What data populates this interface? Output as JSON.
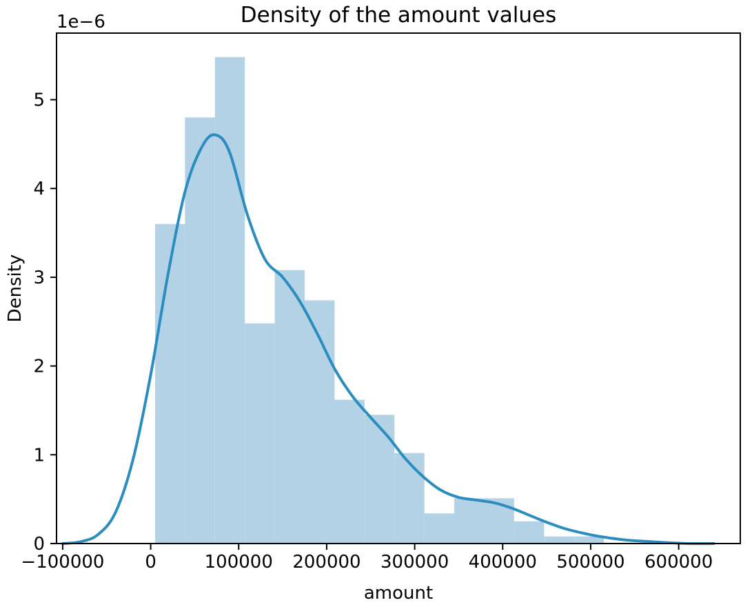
{
  "chart_data": {
    "type": "histogram",
    "title": "Density of the amount values",
    "xlabel": "amount",
    "ylabel": "Density",
    "y_offset_label": "1e−6",
    "xlim": [
      -107000,
      670000
    ],
    "ylim": [
      0,
      5.75
    ],
    "x_ticks": [
      -100000,
      0,
      100000,
      200000,
      300000,
      400000,
      500000,
      600000
    ],
    "x_tick_labels": [
      "−100000",
      "0",
      "100000",
      "200000",
      "300000",
      "400000",
      "500000",
      "600000"
    ],
    "y_ticks": [
      0,
      1,
      2,
      3,
      4,
      5
    ],
    "y_tick_labels": [
      "0",
      "1",
      "2",
      "3",
      "4",
      "5"
    ],
    "bins": [
      {
        "x0": 5000,
        "x1": 39000,
        "density": 3.6
      },
      {
        "x0": 39000,
        "x1": 73000,
        "density": 4.8
      },
      {
        "x0": 73000,
        "x1": 107000,
        "density": 5.48
      },
      {
        "x0": 107000,
        "x1": 141000,
        "density": 2.48
      },
      {
        "x0": 141000,
        "x1": 175000,
        "density": 3.08
      },
      {
        "x0": 175000,
        "x1": 209000,
        "density": 2.74
      },
      {
        "x0": 209000,
        "x1": 243000,
        "density": 1.62
      },
      {
        "x0": 243000,
        "x1": 277000,
        "density": 1.45
      },
      {
        "x0": 277000,
        "x1": 311000,
        "density": 1.02
      },
      {
        "x0": 311000,
        "x1": 345000,
        "density": 0.34
      },
      {
        "x0": 345000,
        "x1": 379000,
        "density": 0.51
      },
      {
        "x0": 379000,
        "x1": 413000,
        "density": 0.51
      },
      {
        "x0": 413000,
        "x1": 447000,
        "density": 0.25
      },
      {
        "x0": 447000,
        "x1": 481000,
        "density": 0.08
      },
      {
        "x0": 481000,
        "x1": 515000,
        "density": 0.08
      }
    ],
    "kde": {
      "x": [
        -100000,
        -80000,
        -60000,
        -40000,
        -20000,
        0,
        20000,
        40000,
        60000,
        75000,
        90000,
        110000,
        130000,
        150000,
        170000,
        190000,
        210000,
        230000,
        250000,
        270000,
        290000,
        310000,
        330000,
        350000,
        370000,
        390000,
        410000,
        430000,
        450000,
        470000,
        490000,
        510000,
        540000,
        570000,
        610000,
        640000
      ],
      "y": [
        0.0,
        0.02,
        0.1,
        0.35,
        0.95,
        1.9,
        3.05,
        4.0,
        4.5,
        4.6,
        4.4,
        3.7,
        3.2,
        3.0,
        2.72,
        2.35,
        1.95,
        1.65,
        1.42,
        1.2,
        0.95,
        0.75,
        0.6,
        0.52,
        0.49,
        0.46,
        0.4,
        0.32,
        0.24,
        0.17,
        0.12,
        0.08,
        0.04,
        0.02,
        0.0,
        0.0
      ]
    },
    "colors": {
      "bar": "#b3d2e6",
      "kde": "#2b8cbe"
    },
    "grid": false,
    "legend": "none"
  }
}
